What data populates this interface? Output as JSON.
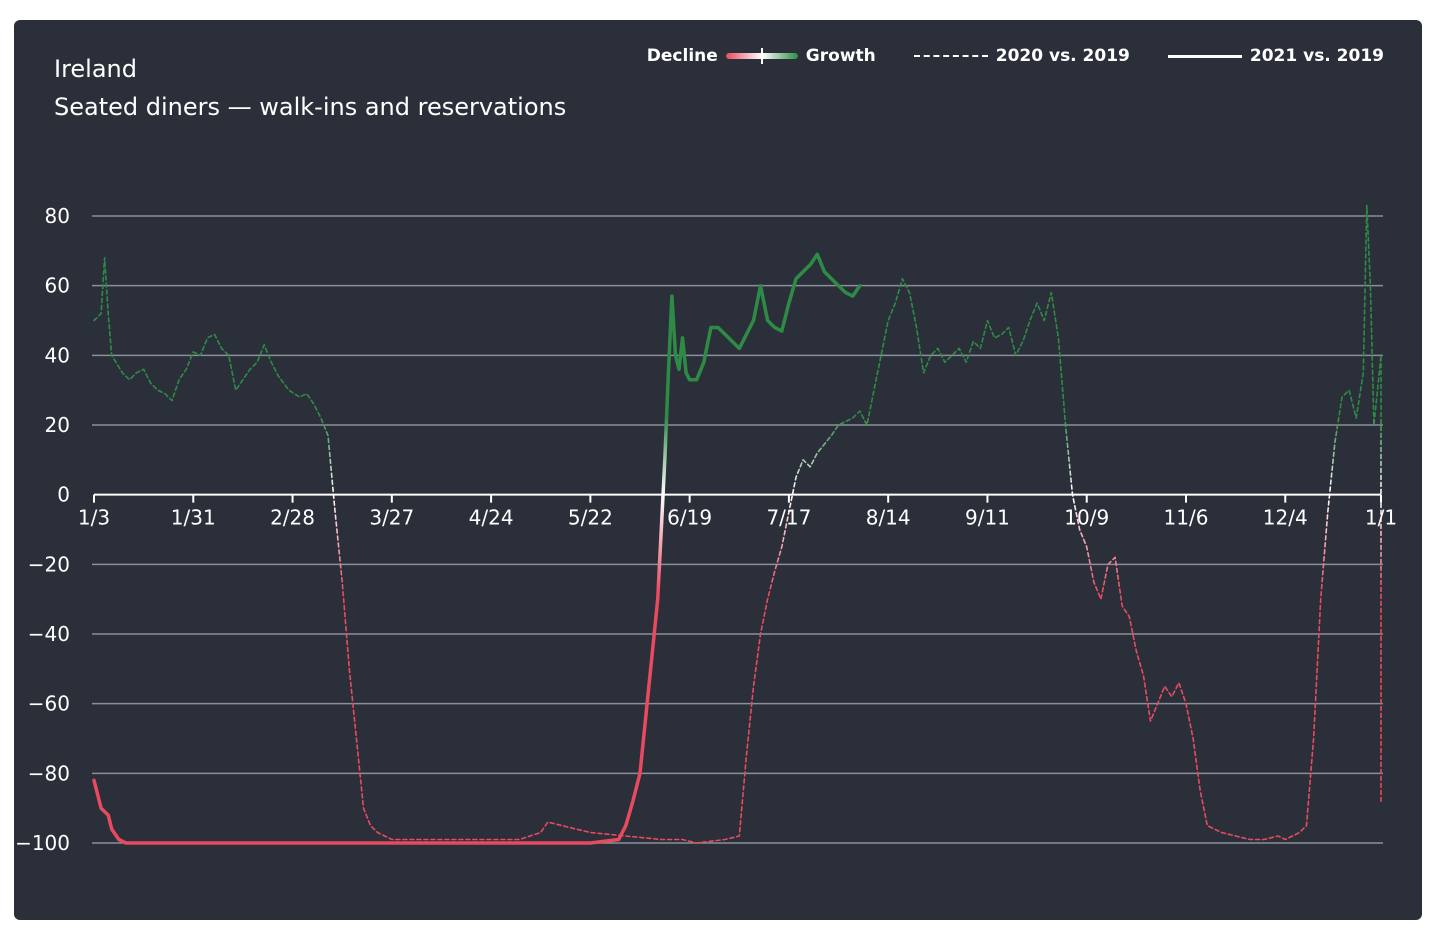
{
  "header": {
    "title": "Ireland",
    "subtitle": "Seated diners — walk-ins and reservations"
  },
  "legend": {
    "decline": "Decline",
    "growth": "Growth",
    "series_2020": "2020 vs. 2019",
    "series_2021": "2021 vs. 2019"
  },
  "colors": {
    "background": "#2b2f3a",
    "decline": "#e84a5f",
    "growth": "#2e8b45",
    "neutral": "#ffffff",
    "grid": "#8a8f99"
  },
  "chart_data": {
    "type": "line",
    "title": "Seated diners — walk-ins and reservations",
    "xlabel": "",
    "ylabel": "",
    "ylim": [
      -100,
      80
    ],
    "yticks": [
      80,
      60,
      40,
      20,
      0,
      -20,
      -40,
      -60,
      -80,
      -100
    ],
    "ytick_labels": [
      "80",
      "60",
      "40",
      "20",
      "0",
      "−20",
      "−40",
      "−60",
      "−80",
      "−100"
    ],
    "xlim_day": [
      0,
      363
    ],
    "xticks": [
      {
        "day": 0,
        "label": "1/3"
      },
      {
        "day": 28,
        "label": "1/31"
      },
      {
        "day": 56,
        "label": "2/28"
      },
      {
        "day": 84,
        "label": "3/27"
      },
      {
        "day": 112,
        "label": "4/24"
      },
      {
        "day": 140,
        "label": "5/22"
      },
      {
        "day": 168,
        "label": "6/19"
      },
      {
        "day": 196,
        "label": "7/17"
      },
      {
        "day": 224,
        "label": "8/14"
      },
      {
        "day": 252,
        "label": "9/11"
      },
      {
        "day": 280,
        "label": "10/9"
      },
      {
        "day": 308,
        "label": "11/6"
      },
      {
        "day": 336,
        "label": "12/4"
      },
      {
        "day": 363,
        "label": "1/1"
      }
    ],
    "grid": true,
    "legend_position": "top-right",
    "series": [
      {
        "name": "2020 vs. 2019",
        "style": "dashed",
        "points": [
          [
            0,
            50
          ],
          [
            2,
            52
          ],
          [
            3,
            68
          ],
          [
            4,
            52
          ],
          [
            5,
            40
          ],
          [
            8,
            35
          ],
          [
            10,
            33
          ],
          [
            12,
            35
          ],
          [
            14,
            36
          ],
          [
            16,
            32
          ],
          [
            18,
            30
          ],
          [
            20,
            29
          ],
          [
            22,
            27
          ],
          [
            24,
            33
          ],
          [
            26,
            36
          ],
          [
            28,
            41
          ],
          [
            30,
            40
          ],
          [
            32,
            45
          ],
          [
            34,
            46
          ],
          [
            36,
            42
          ],
          [
            38,
            40
          ],
          [
            40,
            30
          ],
          [
            42,
            33
          ],
          [
            44,
            36
          ],
          [
            46,
            38
          ],
          [
            48,
            43
          ],
          [
            50,
            38
          ],
          [
            52,
            34
          ],
          [
            55,
            30
          ],
          [
            58,
            28
          ],
          [
            60,
            29
          ],
          [
            62,
            26
          ],
          [
            64,
            22
          ],
          [
            66,
            17
          ],
          [
            68,
            -5
          ],
          [
            70,
            -25
          ],
          [
            72,
            -50
          ],
          [
            74,
            -70
          ],
          [
            76,
            -90
          ],
          [
            78,
            -95
          ],
          [
            80,
            -97
          ],
          [
            84,
            -99
          ],
          [
            100,
            -99
          ],
          [
            120,
            -99
          ],
          [
            126,
            -97
          ],
          [
            128,
            -94
          ],
          [
            132,
            -95
          ],
          [
            136,
            -96
          ],
          [
            140,
            -97
          ],
          [
            150,
            -98
          ],
          [
            160,
            -99
          ],
          [
            166,
            -99
          ],
          [
            170,
            -100
          ],
          [
            178,
            -99
          ],
          [
            182,
            -98
          ],
          [
            184,
            -75
          ],
          [
            186,
            -55
          ],
          [
            188,
            -40
          ],
          [
            190,
            -30
          ],
          [
            192,
            -22
          ],
          [
            194,
            -15
          ],
          [
            196,
            -5
          ],
          [
            198,
            5
          ],
          [
            200,
            10
          ],
          [
            202,
            8
          ],
          [
            204,
            12
          ],
          [
            208,
            17
          ],
          [
            210,
            20
          ],
          [
            214,
            22
          ],
          [
            216,
            24
          ],
          [
            218,
            20
          ],
          [
            220,
            30
          ],
          [
            222,
            40
          ],
          [
            224,
            50
          ],
          [
            226,
            55
          ],
          [
            228,
            62
          ],
          [
            230,
            58
          ],
          [
            232,
            48
          ],
          [
            234,
            35
          ],
          [
            236,
            40
          ],
          [
            238,
            42
          ],
          [
            240,
            38
          ],
          [
            242,
            40
          ],
          [
            244,
            42
          ],
          [
            246,
            38
          ],
          [
            248,
            44
          ],
          [
            250,
            42
          ],
          [
            252,
            50
          ],
          [
            254,
            45
          ],
          [
            256,
            46
          ],
          [
            258,
            48
          ],
          [
            260,
            40
          ],
          [
            262,
            44
          ],
          [
            264,
            50
          ],
          [
            266,
            55
          ],
          [
            268,
            50
          ],
          [
            270,
            58
          ],
          [
            272,
            45
          ],
          [
            274,
            20
          ],
          [
            276,
            0
          ],
          [
            278,
            -10
          ],
          [
            280,
            -15
          ],
          [
            282,
            -25
          ],
          [
            284,
            -30
          ],
          [
            286,
            -20
          ],
          [
            288,
            -18
          ],
          [
            290,
            -32
          ],
          [
            292,
            -35
          ],
          [
            294,
            -45
          ],
          [
            296,
            -52
          ],
          [
            298,
            -65
          ],
          [
            300,
            -60
          ],
          [
            302,
            -55
          ],
          [
            304,
            -58
          ],
          [
            306,
            -54
          ],
          [
            308,
            -60
          ],
          [
            310,
            -70
          ],
          [
            312,
            -85
          ],
          [
            314,
            -95
          ],
          [
            318,
            -97
          ],
          [
            322,
            -98
          ],
          [
            326,
            -99
          ],
          [
            330,
            -99
          ],
          [
            334,
            -98
          ],
          [
            336,
            -99
          ],
          [
            338,
            -98
          ],
          [
            340,
            -97
          ],
          [
            342,
            -95
          ],
          [
            344,
            -70
          ],
          [
            346,
            -30
          ],
          [
            348,
            -5
          ],
          [
            350,
            15
          ],
          [
            352,
            28
          ],
          [
            354,
            30
          ],
          [
            356,
            22
          ],
          [
            358,
            35
          ],
          [
            359,
            83
          ],
          [
            360,
            60
          ],
          [
            361,
            20
          ],
          [
            362,
            30
          ],
          [
            363,
            40
          ],
          [
            363,
            -88
          ]
        ]
      },
      {
        "name": "2021 vs. 2019",
        "style": "solid",
        "points": [
          [
            0,
            -82
          ],
          [
            2,
            -90
          ],
          [
            4,
            -92
          ],
          [
            5,
            -96
          ],
          [
            7,
            -99
          ],
          [
            9,
            -100
          ],
          [
            20,
            -100
          ],
          [
            40,
            -100
          ],
          [
            60,
            -100
          ],
          [
            80,
            -100
          ],
          [
            100,
            -100
          ],
          [
            120,
            -100
          ],
          [
            140,
            -100
          ],
          [
            148,
            -99
          ],
          [
            150,
            -95
          ],
          [
            152,
            -88
          ],
          [
            154,
            -80
          ],
          [
            156,
            -60
          ],
          [
            158,
            -40
          ],
          [
            159,
            -30
          ],
          [
            160,
            -10
          ],
          [
            161,
            10
          ],
          [
            162,
            35
          ],
          [
            163,
            57
          ],
          [
            164,
            40
          ],
          [
            165,
            36
          ],
          [
            166,
            45
          ],
          [
            167,
            35
          ],
          [
            168,
            33
          ],
          [
            170,
            33
          ],
          [
            172,
            38
          ],
          [
            174,
            48
          ],
          [
            176,
            48
          ],
          [
            178,
            46
          ],
          [
            180,
            44
          ],
          [
            182,
            42
          ],
          [
            184,
            46
          ],
          [
            186,
            50
          ],
          [
            188,
            60
          ],
          [
            190,
            50
          ],
          [
            192,
            48
          ],
          [
            194,
            47
          ],
          [
            196,
            55
          ],
          [
            198,
            62
          ],
          [
            200,
            64
          ],
          [
            202,
            66
          ],
          [
            204,
            69
          ],
          [
            206,
            64
          ],
          [
            208,
            62
          ],
          [
            210,
            60
          ],
          [
            212,
            58
          ],
          [
            214,
            57
          ],
          [
            216,
            60
          ]
        ]
      }
    ]
  }
}
